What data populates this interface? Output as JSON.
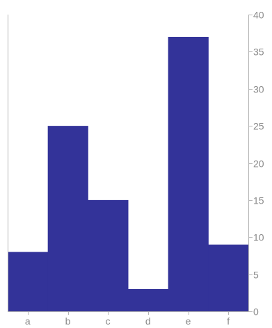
{
  "chart_data": {
    "type": "bar",
    "categories": [
      "a",
      "b",
      "c",
      "d",
      "e",
      "f"
    ],
    "values": [
      8,
      25,
      15,
      3,
      37,
      9
    ],
    "ylim": [
      0,
      40
    ],
    "yticks": [
      "0",
      "5",
      "10",
      "15",
      "20",
      "25",
      "30",
      "35",
      "40"
    ],
    "y_axis_side": "right",
    "bar_color": "#333399",
    "axis_color": "#b5b5b5",
    "tick_color": "#8a8a8a",
    "grid": false,
    "bar_gap": 0
  }
}
